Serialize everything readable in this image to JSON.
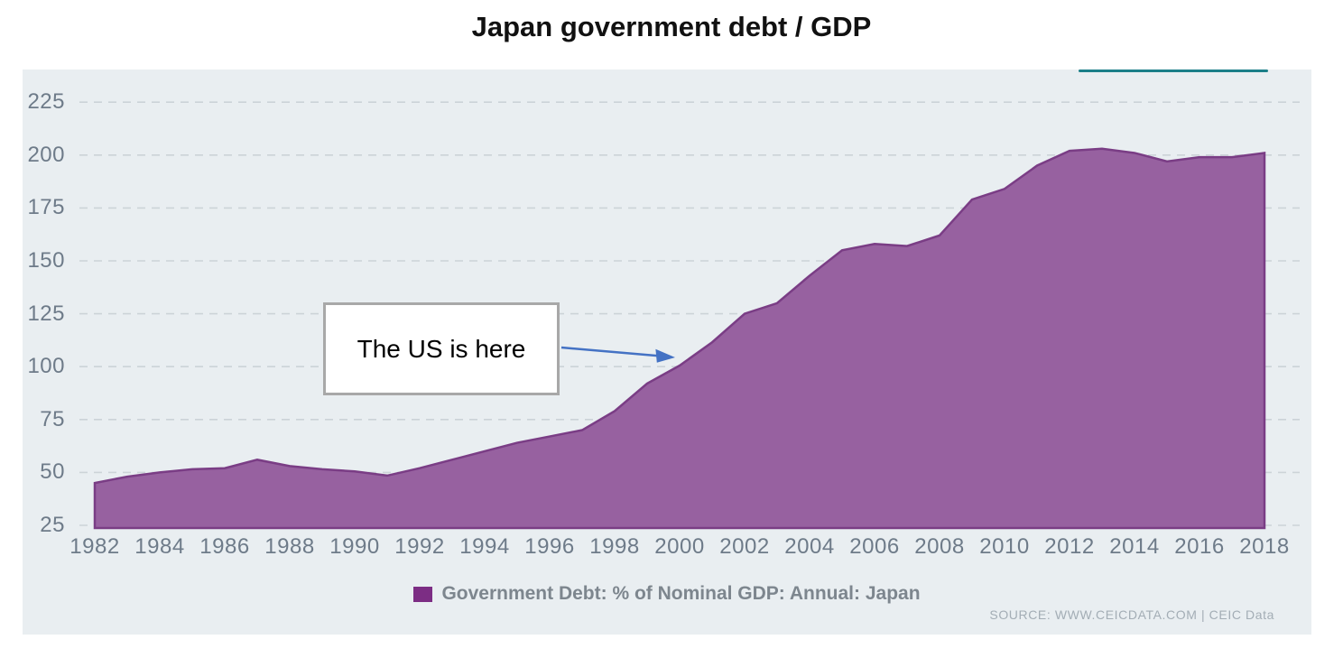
{
  "title": "Japan government debt / GDP",
  "annotation": {
    "text": "The US is here",
    "arrow_color": "#4472c4"
  },
  "legend": {
    "label": "Government Debt: % of Nominal GDP: Annual: Japan",
    "swatch_color": "#7c2d84"
  },
  "source": {
    "text": "SOURCE: WWW.CEICDATA.COM | CEIC Data"
  },
  "colors": {
    "panel_background": "#e9eef1",
    "gridline": "#ccd3d8",
    "axis_label": "#6e7b89",
    "accent_teal": "#1b7f88",
    "area_fill": "#9761a0",
    "area_stroke": "#7a3d85"
  },
  "chart_data": {
    "type": "area",
    "title": "Japan government debt / GDP",
    "series_name": "Government Debt: % of Nominal GDP: Annual: Japan",
    "x": [
      1982,
      1983,
      1984,
      1985,
      1986,
      1987,
      1988,
      1989,
      1990,
      1991,
      1992,
      1993,
      1994,
      1995,
      1996,
      1997,
      1998,
      1999,
      2000,
      2001,
      2002,
      2003,
      2004,
      2005,
      2006,
      2007,
      2008,
      2009,
      2010,
      2011,
      2012,
      2013,
      2014,
      2015,
      2016,
      2017,
      2018
    ],
    "values": [
      45,
      48,
      50,
      51.5,
      52,
      56,
      53,
      51.5,
      50.5,
      48.5,
      52,
      56,
      60,
      64,
      67,
      70,
      79,
      92,
      100.5,
      111.5,
      125,
      130,
      143,
      155,
      158,
      157,
      162,
      179,
      184,
      195,
      202,
      203,
      201,
      197,
      199,
      199,
      201
    ],
    "xlabel": "",
    "ylabel": "",
    "ylim": [
      25,
      240
    ],
    "yticks": [
      225,
      200,
      175,
      150,
      125,
      100,
      75,
      50,
      25
    ],
    "xticks": [
      1982,
      1984,
      1986,
      1988,
      1990,
      1992,
      1994,
      1996,
      1998,
      2000,
      2002,
      2004,
      2006,
      2008,
      2010,
      2012,
      2014,
      2016,
      2018
    ],
    "grid": "horizontal-dashed",
    "legend_position": "bottom"
  }
}
